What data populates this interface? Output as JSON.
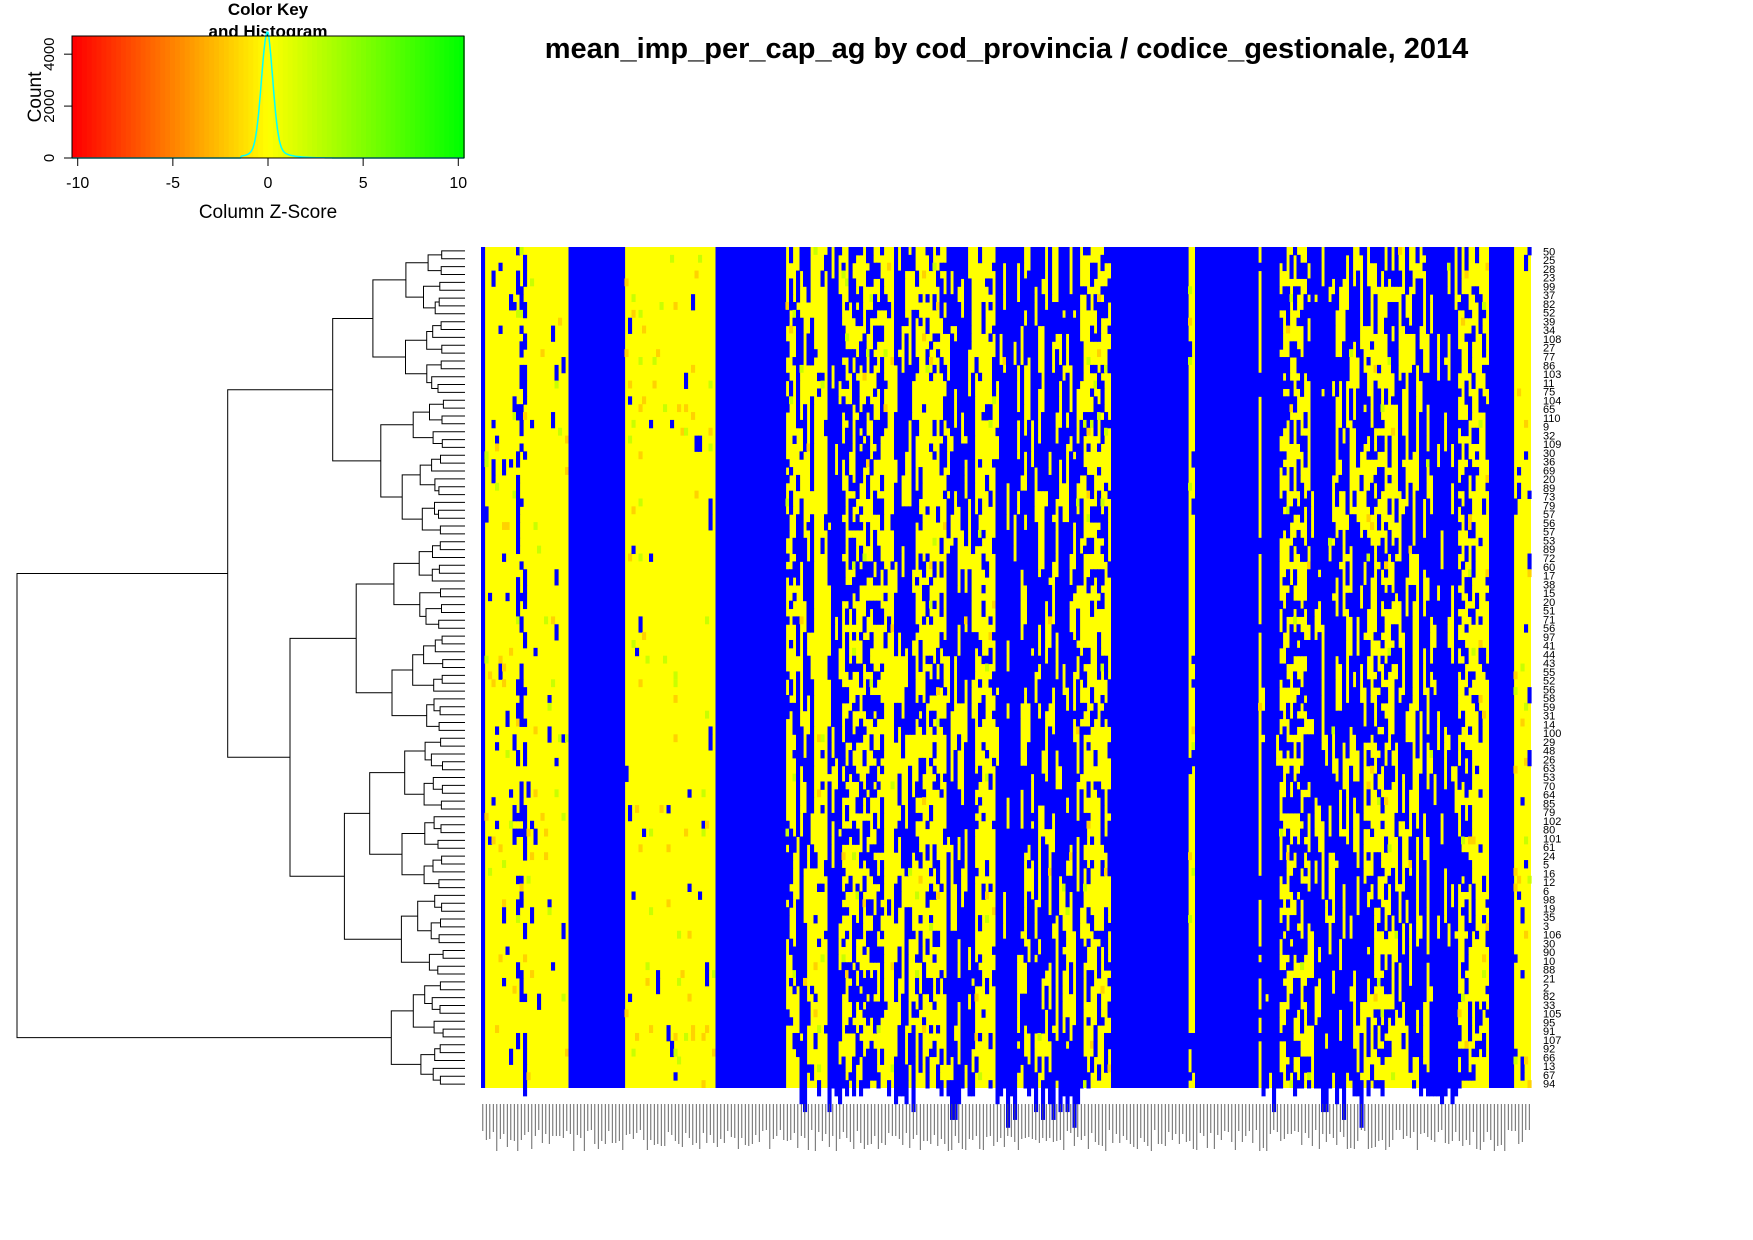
{
  "title": "mean_imp_per_cap_ag by cod_provincia / codice_gestionale, 2014",
  "color_key": {
    "title_line1": "Color Key",
    "title_line2": "and Histogram",
    "xlabel": "Column Z-Score",
    "ylabel": "Count",
    "x_ticks": [
      "-10",
      "-5",
      "0",
      "5",
      "10"
    ],
    "y_ticks": [
      "0",
      "2000",
      "4000"
    ],
    "x_range": [
      -10.3,
      10.3
    ],
    "y_range": [
      0,
      4700
    ],
    "gradient": [
      "#ff0000",
      "#ff8000",
      "#ffff00",
      "#80ff00",
      "#00ff00"
    ],
    "histogram_color": "#00ffff"
  },
  "chart_data": {
    "type": "heatmap",
    "title": "mean_imp_per_cap_ag by cod_provincia / codice_gestionale, 2014",
    "row_labels_visible": [
      "50",
      "25",
      "28",
      "23",
      "99",
      "37",
      "82",
      "52",
      "39",
      "34",
      "108",
      "27",
      "77",
      "86",
      "103",
      "11",
      "75",
      "104",
      "65",
      "110",
      "9",
      "32",
      "109",
      "30",
      "36",
      "69",
      "20",
      "89",
      "73",
      "79",
      "57",
      "56",
      "57",
      "53",
      "89",
      "72",
      "60",
      "17",
      "38",
      "15",
      "20",
      "51",
      "71",
      "56",
      "97",
      "41",
      "44",
      "43",
      "55",
      "52",
      "56",
      "58",
      "59",
      "31",
      "14",
      "100",
      "29",
      "48",
      "26",
      "63",
      "53",
      "70",
      "64",
      "85",
      "79",
      "102",
      "80",
      "101",
      "61",
      "24",
      "5",
      "16",
      "12",
      "6",
      "98",
      "19",
      "35",
      "3",
      "106",
      "30",
      "90",
      "10",
      "88",
      "21",
      "2",
      "82",
      "33",
      "105",
      "95",
      "91",
      "107",
      "92",
      "66",
      "13",
      "67",
      "94"
    ],
    "n_rows": 107,
    "n_cols": 300,
    "missing_value_color": "#0000ff",
    "colors": [
      "#ff0000",
      "#ffff00",
      "#00ff00",
      "#0000ff"
    ],
    "dendrogram": "rows",
    "color_key_position": "top-left"
  }
}
